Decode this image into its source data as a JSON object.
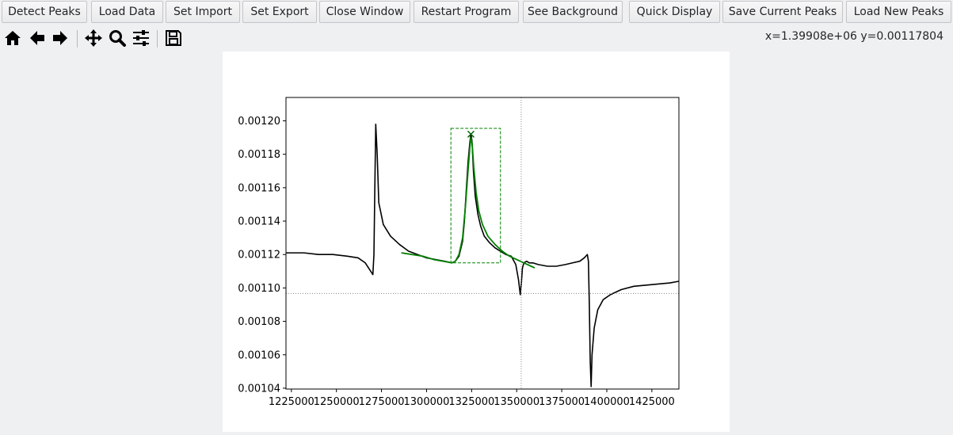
{
  "toolbar_buttons": [
    {
      "label": "Detect Peaks"
    },
    {
      "label": "Load Data"
    },
    {
      "label": "Set Import"
    },
    {
      "label": "Set Export"
    },
    {
      "label": "Close Window"
    },
    {
      "label": "Restart Program"
    },
    {
      "label": "See Background"
    },
    {
      "label": "Quick Display"
    },
    {
      "label": "Save Current Peaks"
    },
    {
      "label": "Load New Peaks"
    }
  ],
  "nav_tools": [
    {
      "icon": "home-icon"
    },
    {
      "icon": "back-arrow-icon"
    },
    {
      "icon": "forward-arrow-icon"
    },
    {
      "icon": "pan-icon"
    },
    {
      "icon": "zoom-icon"
    },
    {
      "icon": "configure-subplots-icon"
    },
    {
      "icon": "save-icon"
    }
  ],
  "cursor_readout": "x=1.39908e+06  y=0.00117804",
  "chart_data": {
    "type": "line",
    "xlim": [
      1222000,
      1440000
    ],
    "ylim": [
      0.0010395,
      0.001214
    ],
    "x_ticks": [
      1225000,
      1250000,
      1275000,
      1300000,
      1325000,
      1350000,
      1375000,
      1400000,
      1425000
    ],
    "x_tick_labels": [
      "1225000",
      "1250000",
      "1275000",
      "1300000",
      "1325000",
      "1350000",
      "1375000",
      "1400000",
      "1425000"
    ],
    "y_ticks": [
      0.00104,
      0.00106,
      0.00108,
      0.0011,
      0.00112,
      0.00114,
      0.00116,
      0.00118,
      0.0012
    ],
    "y_tick_labels": [
      "0.00104",
      "0.00106",
      "0.00108",
      "0.00110",
      "0.00112",
      "0.00114",
      "0.00116",
      "0.00118",
      "0.00120"
    ],
    "grid": false,
    "series": [
      {
        "color": "#000000",
        "x": [
          1222000,
          1232000,
          1240000,
          1248000,
          1256000,
          1262000,
          1266000,
          1269000,
          1270200,
          1270800,
          1271300,
          1271800,
          1272600,
          1273500,
          1276000,
          1280000,
          1285000,
          1290000,
          1295000,
          1300000,
          1305000,
          1310000,
          1314000,
          1316000,
          1318000,
          1320000,
          1321000,
          1322000,
          1323000,
          1324000,
          1324600,
          1325200,
          1326000,
          1327000,
          1328500,
          1330000,
          1332000,
          1335000,
          1338000,
          1341000,
          1344000,
          1347000,
          1349500,
          1351000,
          1352000,
          1352600,
          1353200,
          1354000,
          1355500,
          1357000,
          1359000,
          1362000,
          1367000,
          1372000,
          1377000,
          1381000,
          1385000,
          1387500,
          1389200,
          1389800,
          1390300,
          1390800,
          1391300,
          1391800,
          1393000,
          1395000,
          1398000,
          1402000,
          1408000,
          1415000,
          1425000,
          1435000,
          1440000
        ],
        "y": [
          0.001121,
          0.001121,
          0.00112,
          0.00112,
          0.001119,
          0.001118,
          0.001115,
          0.00111,
          0.001108,
          0.00112,
          0.00116,
          0.001198,
          0.00118,
          0.001151,
          0.001138,
          0.001131,
          0.001126,
          0.001122,
          0.00112,
          0.001118,
          0.001117,
          0.001116,
          0.001115,
          0.001116,
          0.001119,
          0.001128,
          0.00114,
          0.001158,
          0.001175,
          0.001187,
          0.001192,
          0.001188,
          0.00117,
          0.001155,
          0.001144,
          0.001137,
          0.001131,
          0.001127,
          0.001124,
          0.001122,
          0.00112,
          0.001119,
          0.001114,
          0.001105,
          0.001096,
          0.001103,
          0.001112,
          0.001115,
          0.001116,
          0.001115,
          0.001115,
          0.001114,
          0.001113,
          0.001113,
          0.001114,
          0.001115,
          0.001116,
          0.001118,
          0.00112,
          0.001116,
          0.00109,
          0.001056,
          0.001041,
          0.00106,
          0.001076,
          0.001087,
          0.001093,
          0.001096,
          0.001099,
          0.001101,
          0.001102,
          0.001103,
          0.001104
        ]
      },
      {
        "color": "#008000",
        "x": [
          1286000,
          1292000,
          1298000,
          1304000,
          1309000,
          1314000,
          1316000,
          1318000,
          1320000,
          1321500,
          1323000,
          1324000,
          1324600,
          1325300,
          1326200,
          1327500,
          1329000,
          1331000,
          1334000,
          1338000,
          1342000,
          1346000,
          1350000,
          1354000,
          1358000,
          1360000
        ],
        "y": [
          0.001121,
          0.00112,
          0.001119,
          0.001117,
          0.001116,
          0.001115,
          0.001116,
          0.00112,
          0.00113,
          0.001148,
          0.00117,
          0.001184,
          0.00119,
          0.001186,
          0.001172,
          0.001157,
          0.001146,
          0.001138,
          0.001131,
          0.001126,
          0.001122,
          0.001119,
          0.001117,
          0.001115,
          0.001113,
          0.001112
        ]
      }
    ],
    "peak_marker": {
      "x": 1324600,
      "y": 0.001192,
      "color": "#006400"
    },
    "selection_box": {
      "x": [
        1313500,
        1341000
      ],
      "y": [
        0.001115,
        0.0011955
      ],
      "color": "#008000"
    },
    "crosshair": {
      "x": 1352500,
      "y": 0.0010967,
      "color": "#888888"
    }
  }
}
